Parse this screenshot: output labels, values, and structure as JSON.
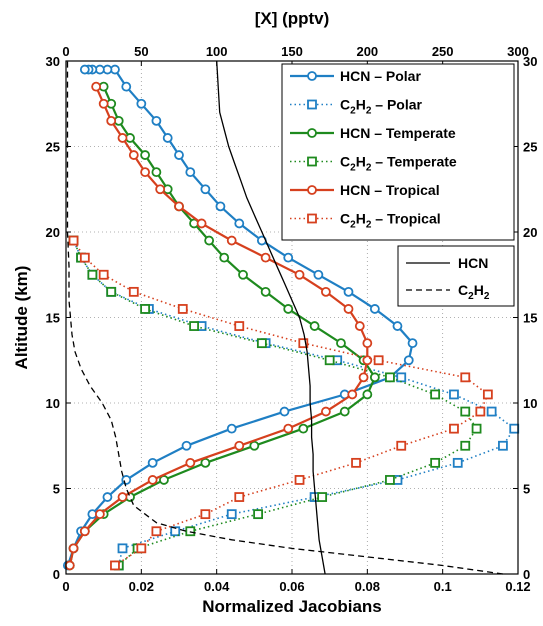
{
  "chart_data": {
    "type": "line",
    "xlabel": "Normalized Jacobians",
    "ylabel": "Altitude (km)",
    "top_xlabel": "[X] (pptv)",
    "xlim": [
      0,
      0.12
    ],
    "ylim": [
      0,
      30
    ],
    "top_xlim": [
      0,
      300
    ],
    "grid": true,
    "x_ticks": [
      "0",
      "0.02",
      "0.04",
      "0.06",
      "0.08",
      "0.1",
      "0.12"
    ],
    "x_tick_values": [
      0,
      0.02,
      0.04,
      0.06,
      0.08,
      0.1,
      0.12
    ],
    "top_ticks": [
      "0",
      "50",
      "100",
      "150",
      "200",
      "250",
      "300"
    ],
    "top_tick_values": [
      0,
      50,
      100,
      150,
      200,
      250,
      300
    ],
    "y_ticks": [
      "0",
      "5",
      "10",
      "15",
      "20",
      "25",
      "30"
    ],
    "y_tick_values": [
      0,
      5,
      10,
      15,
      20,
      25,
      30
    ],
    "colors": {
      "polar": "#1f7fc4",
      "temperate": "#1e8a1e",
      "tropical": "#d6401e",
      "concentration": "#000000"
    },
    "legend_placement": "top-right",
    "series": [
      {
        "name": "HCN – Polar",
        "style": "solid-circle",
        "color_key": "polar",
        "x": [
          0.0005,
          0.002,
          0.004,
          0.007,
          0.011,
          0.016,
          0.023,
          0.032,
          0.044,
          0.058,
          0.074,
          0.086,
          0.091,
          0.092,
          0.088,
          0.082,
          0.075,
          0.067,
          0.059,
          0.052,
          0.046,
          0.041,
          0.037,
          0.033,
          0.03,
          0.027,
          0.024,
          0.02,
          0.016,
          0.013,
          0.011,
          0.009,
          0.007,
          0.006,
          0.005
        ],
        "y": [
          0.5,
          1.5,
          2.5,
          3.5,
          4.5,
          5.5,
          6.5,
          7.5,
          8.5,
          9.5,
          10.5,
          11.5,
          12.5,
          13.5,
          14.5,
          15.5,
          16.5,
          17.5,
          18.5,
          19.5,
          20.5,
          21.5,
          22.5,
          23.5,
          24.5,
          25.5,
          26.5,
          27.5,
          28.5,
          29.5,
          29.5,
          29.5,
          29.5,
          29.5,
          29.5
        ]
      },
      {
        "name": "C2H2 – Polar",
        "style": "dotted-square",
        "color_key": "polar",
        "x": [
          0.014,
          0.015,
          0.029,
          0.044,
          0.066,
          0.088,
          0.104,
          0.116,
          0.119,
          0.113,
          0.103,
          0.089,
          0.072,
          0.053,
          0.036,
          0.022,
          0.012,
          0.007,
          0.004,
          0.002
        ],
        "y": [
          0.5,
          1.5,
          2.5,
          3.5,
          4.5,
          5.5,
          6.5,
          7.5,
          8.5,
          9.5,
          10.5,
          11.5,
          12.5,
          13.5,
          14.5,
          15.5,
          16.5,
          17.5,
          18.5,
          19.5
        ]
      },
      {
        "name": "HCN – Temperate",
        "style": "solid-circle",
        "color_key": "temperate",
        "x": [
          0.001,
          0.002,
          0.005,
          0.01,
          0.017,
          0.026,
          0.037,
          0.05,
          0.063,
          0.074,
          0.08,
          0.082,
          0.079,
          0.073,
          0.066,
          0.059,
          0.053,
          0.047,
          0.042,
          0.038,
          0.034,
          0.03,
          0.027,
          0.024,
          0.021,
          0.017,
          0.014,
          0.012,
          0.01
        ],
        "y": [
          0.5,
          1.5,
          2.5,
          3.5,
          4.5,
          5.5,
          6.5,
          7.5,
          8.5,
          9.5,
          10.5,
          11.5,
          12.5,
          13.5,
          14.5,
          15.5,
          16.5,
          17.5,
          18.5,
          19.5,
          20.5,
          21.5,
          22.5,
          23.5,
          24.5,
          25.5,
          26.5,
          27.5,
          28.5
        ]
      },
      {
        "name": "C2H2 – Temperate",
        "style": "dotted-square",
        "color_key": "temperate",
        "x": [
          0.014,
          0.019,
          0.033,
          0.051,
          0.068,
          0.086,
          0.098,
          0.106,
          0.109,
          0.106,
          0.098,
          0.086,
          0.07,
          0.052,
          0.034,
          0.021,
          0.012,
          0.007,
          0.004,
          0.002
        ],
        "y": [
          0.5,
          1.5,
          2.5,
          3.5,
          4.5,
          5.5,
          6.5,
          7.5,
          8.5,
          9.5,
          10.5,
          11.5,
          12.5,
          13.5,
          14.5,
          15.5,
          16.5,
          17.5,
          18.5,
          19.5
        ]
      },
      {
        "name": "HCN – Tropical",
        "style": "solid-circle",
        "color_key": "tropical",
        "x": [
          0.001,
          0.002,
          0.005,
          0.009,
          0.015,
          0.023,
          0.033,
          0.046,
          0.059,
          0.069,
          0.076,
          0.079,
          0.08,
          0.08,
          0.078,
          0.075,
          0.069,
          0.062,
          0.053,
          0.044,
          0.036,
          0.03,
          0.025,
          0.021,
          0.018,
          0.015,
          0.012,
          0.01,
          0.008
        ],
        "y": [
          0.5,
          1.5,
          2.5,
          3.5,
          4.5,
          5.5,
          6.5,
          7.5,
          8.5,
          9.5,
          10.5,
          11.5,
          12.5,
          13.5,
          14.5,
          15.5,
          16.5,
          17.5,
          18.5,
          19.5,
          20.5,
          21.5,
          22.5,
          23.5,
          24.5,
          25.5,
          26.5,
          27.5,
          28.5
        ]
      },
      {
        "name": "C2H2 – Tropical",
        "style": "dotted-square",
        "color_key": "tropical",
        "x": [
          0.013,
          0.02,
          0.024,
          0.037,
          0.046,
          0.062,
          0.077,
          0.089,
          0.103,
          0.11,
          0.112,
          0.106,
          0.083,
          0.063,
          0.046,
          0.031,
          0.018,
          0.01,
          0.005,
          0.002
        ],
        "y": [
          0.5,
          1.5,
          2.5,
          3.5,
          4.5,
          5.5,
          6.5,
          7.5,
          8.5,
          9.5,
          10.5,
          11.5,
          12.5,
          13.5,
          14.5,
          15.5,
          16.5,
          17.5,
          18.5,
          19.5
        ]
      },
      {
        "name": "HCN",
        "style": "solid-black",
        "color_key": "concentration",
        "axis": "top",
        "x": [
          172,
          170,
          168,
          167,
          166,
          165,
          164,
          164,
          163,
          163,
          162,
          162,
          161,
          160,
          158,
          155,
          150,
          145,
          140,
          135,
          130,
          125,
          120,
          116,
          112,
          108,
          105,
          102,
          100
        ],
        "y": [
          0,
          1,
          2,
          3,
          4,
          5,
          6,
          7,
          8,
          9,
          10,
          11,
          12,
          13,
          14,
          15,
          16,
          17,
          18,
          19,
          20,
          21,
          22,
          23,
          24,
          25,
          26,
          27,
          30
        ]
      },
      {
        "name": "C2H2",
        "style": "dashed-black",
        "color_key": "concentration",
        "axis": "top",
        "x": [
          290,
          250,
          200,
          150,
          110,
          80,
          60,
          45,
          40,
          37,
          35,
          33,
          30,
          24,
          16,
          10,
          6,
          4,
          3,
          2,
          2,
          2,
          1,
          1,
          1,
          1,
          1
        ],
        "y": [
          0,
          0.5,
          1,
          1.5,
          2,
          2.5,
          3,
          4,
          5,
          6,
          7,
          8,
          9,
          10,
          11,
          12,
          13,
          14,
          15,
          16,
          17,
          18,
          20,
          22,
          25,
          28,
          30
        ]
      }
    ]
  }
}
